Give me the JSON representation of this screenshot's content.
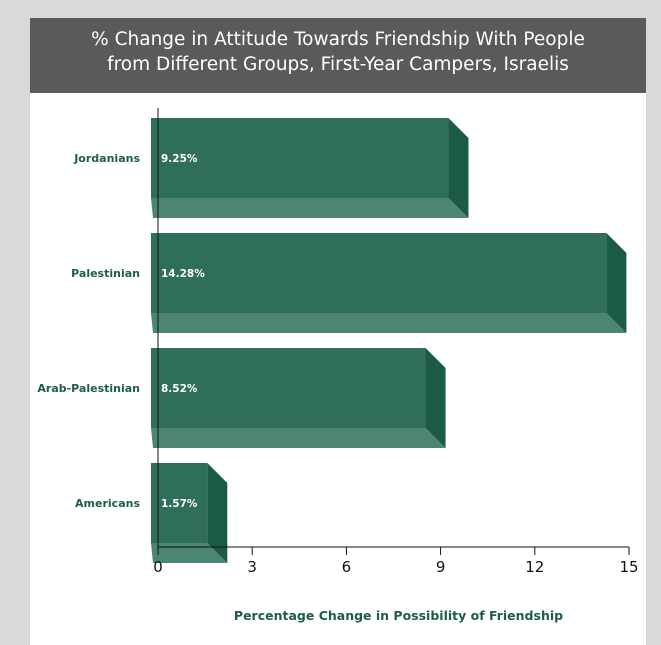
{
  "title_lines": [
    "% Change in Attitude Towards Friendship With People",
    "from Different Groups, First-Year Campers, Israelis"
  ],
  "colors": {
    "header_bg": "#5a5a5a",
    "bar_front": "#2f6e57",
    "bar_top": "#4a8a71",
    "bar_side": "#1b5a43",
    "bar_bottom": "#4c8670",
    "label_green": "#1e5e41"
  },
  "chart_data": {
    "type": "bar",
    "orientation": "horizontal",
    "style": "3d",
    "categories": [
      "Jordanians",
      "Palestinian",
      "Arab-Palestinian",
      "Americans"
    ],
    "values": [
      9.25,
      14.28,
      8.52,
      1.57
    ],
    "value_labels": [
      "9.25%",
      "14.28%",
      "8.52%",
      "1.57%"
    ],
    "xlabel": "Percentage Change in Possibility of Friendship",
    "ylabel": "",
    "xlim": [
      0,
      15
    ],
    "xticks": [
      0,
      3,
      6,
      9,
      12,
      15
    ],
    "xtick_labels": [
      "0",
      "3",
      "6",
      "9",
      "12",
      "15"
    ],
    "grid": false,
    "legend": "none"
  }
}
